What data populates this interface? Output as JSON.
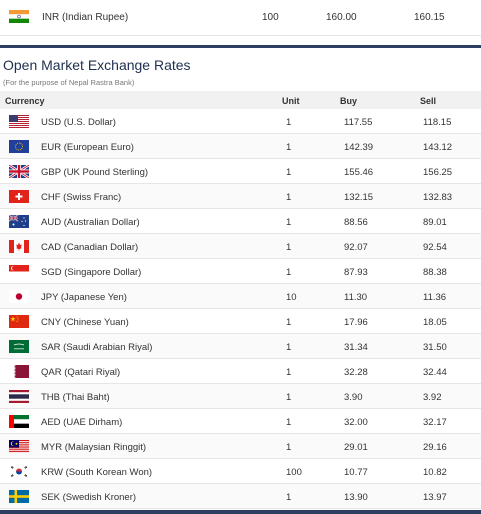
{
  "top_row": {
    "currency": "INR (Indian Rupee)",
    "unit": "100",
    "buy": "160.00",
    "sell": "160.15",
    "flag": "india-flag-icon"
  },
  "title": "Open Market Exchange Rates",
  "subtitle": "(For the purpose of Nepal Rastra Bank)",
  "headers": {
    "currency": "Currency",
    "unit": "Unit",
    "buy": "Buy",
    "sell": "Sell"
  },
  "rows": [
    {
      "currency": "USD (U.S. Dollar)",
      "unit": "1",
      "buy": "117.55",
      "sell": "118.15",
      "flag": "us-flag-icon"
    },
    {
      "currency": "EUR (European Euro)",
      "unit": "1",
      "buy": "142.39",
      "sell": "143.12",
      "flag": "eu-flag-icon"
    },
    {
      "currency": "GBP (UK Pound Sterling)",
      "unit": "1",
      "buy": "155.46",
      "sell": "156.25",
      "flag": "uk-flag-icon"
    },
    {
      "currency": "CHF (Swiss Franc)",
      "unit": "1",
      "buy": "132.15",
      "sell": "132.83",
      "flag": "swiss-flag-icon"
    },
    {
      "currency": "AUD (Australian Dollar)",
      "unit": "1",
      "buy": "88.56",
      "sell": "89.01",
      "flag": "australia-flag-icon"
    },
    {
      "currency": "CAD (Canadian Dollar)",
      "unit": "1",
      "buy": "92.07",
      "sell": "92.54",
      "flag": "canada-flag-icon"
    },
    {
      "currency": "SGD (Singapore Dollar)",
      "unit": "1",
      "buy": "87.93",
      "sell": "88.38",
      "flag": "singapore-flag-icon"
    },
    {
      "currency": "JPY (Japanese Yen)",
      "unit": "10",
      "buy": "11.30",
      "sell": "11.36",
      "flag": "japan-flag-icon"
    },
    {
      "currency": "CNY (Chinese Yuan)",
      "unit": "1",
      "buy": "17.96",
      "sell": "18.05",
      "flag": "china-flag-icon"
    },
    {
      "currency": "SAR (Saudi Arabian Riyal)",
      "unit": "1",
      "buy": "31.34",
      "sell": "31.50",
      "flag": "saudi-flag-icon"
    },
    {
      "currency": "QAR (Qatari Riyal)",
      "unit": "1",
      "buy": "32.28",
      "sell": "32.44",
      "flag": "qatar-flag-icon"
    },
    {
      "currency": "THB (Thai Baht)",
      "unit": "1",
      "buy": "3.90",
      "sell": "3.92",
      "flag": "thailand-flag-icon"
    },
    {
      "currency": "AED (UAE Dirham)",
      "unit": "1",
      "buy": "32.00",
      "sell": "32.17",
      "flag": "uae-flag-icon"
    },
    {
      "currency": "MYR (Malaysian Ringgit)",
      "unit": "1",
      "buy": "29.01",
      "sell": "29.16",
      "flag": "malaysia-flag-icon"
    },
    {
      "currency": "KRW (South Korean Won)",
      "unit": "100",
      "buy": "10.77",
      "sell": "10.82",
      "flag": "korea-flag-icon"
    },
    {
      "currency": "SEK (Swedish Kroner)",
      "unit": "1",
      "buy": "13.90",
      "sell": "13.97",
      "flag": "sweden-flag-icon"
    }
  ]
}
